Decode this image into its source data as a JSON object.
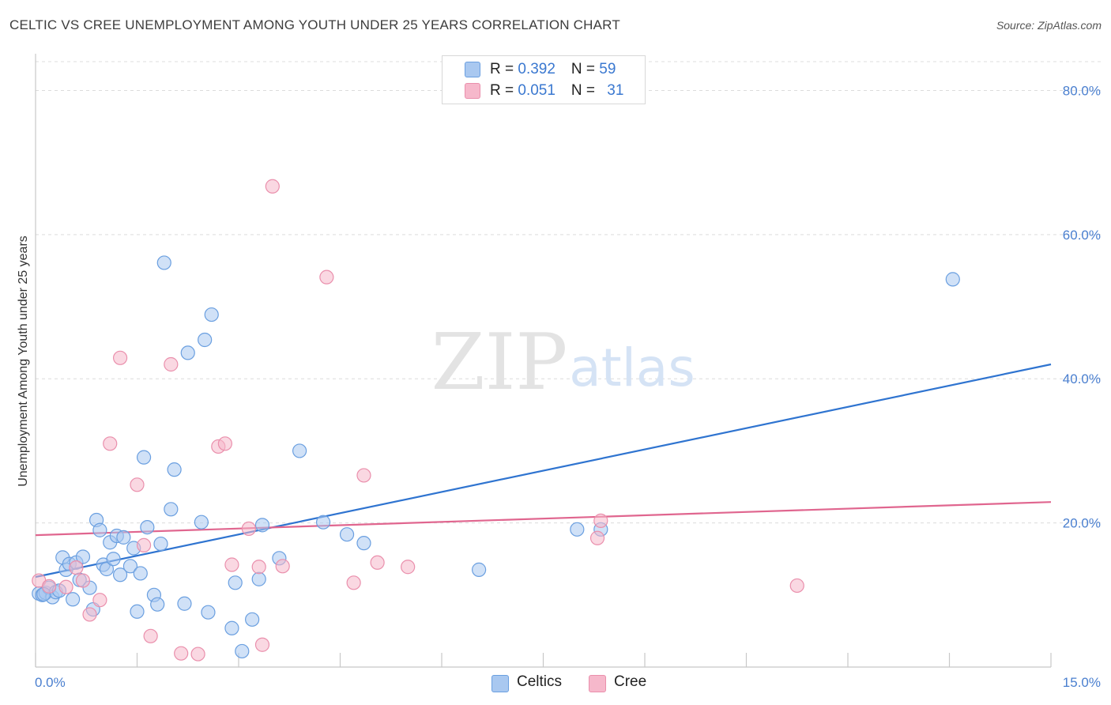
{
  "header": {
    "title": "CELTIC VS CREE UNEMPLOYMENT AMONG YOUTH UNDER 25 YEARS CORRELATION CHART",
    "source": "Source: ZipAtlas.com"
  },
  "watermark": {
    "zip": "ZIP",
    "atlas": "atlas"
  },
  "legend": {
    "rows": [
      {
        "r_label": "R = ",
        "r_value": "0.392",
        "n_label": "N = ",
        "n_value": "59"
      },
      {
        "r_label": "R = ",
        "r_value": "0.051",
        "n_label": "N = ",
        "n_value": "31"
      }
    ]
  },
  "bottom_legend": {
    "celtics": "Celtics",
    "cree": "Cree"
  },
  "colors": {
    "celtics_fill": "#a9c8f0",
    "celtics_stroke": "#6a9fe0",
    "celtics_line": "#2f74d0",
    "cree_fill": "#f6b8cb",
    "cree_stroke": "#ea8fac",
    "cree_line": "#e0668f",
    "tick_text": "#4a7fcf"
  },
  "chart_data": {
    "type": "scatter",
    "title": "CELTIC VS CREE UNEMPLOYMENT AMONG YOUTH UNDER 25 YEARS CORRELATION CHART",
    "xlabel": "",
    "ylabel": "Unemployment Among Youth under 25 years",
    "xlim": [
      0,
      15
    ],
    "ylim": [
      0,
      84
    ],
    "x_tick_labels": [
      "0.0%",
      "15.0%"
    ],
    "y_ticks": [
      20,
      40,
      60,
      80
    ],
    "y_tick_labels": [
      "20.0%",
      "40.0%",
      "60.0%",
      "80.0%"
    ],
    "grid": true,
    "series": [
      {
        "name": "Celtics",
        "r": 0.392,
        "n": 59,
        "trend": {
          "x": [
            0,
            15
          ],
          "y": [
            12.5,
            42.0
          ]
        },
        "points": [
          [
            0.05,
            10.2
          ],
          [
            0.1,
            10.0
          ],
          [
            0.15,
            10.3
          ],
          [
            0.2,
            11.0
          ],
          [
            0.25,
            9.7
          ],
          [
            0.3,
            10.4
          ],
          [
            0.4,
            15.2
          ],
          [
            0.45,
            13.5
          ],
          [
            0.5,
            14.3
          ],
          [
            0.55,
            9.4
          ],
          [
            0.6,
            14.5
          ],
          [
            0.65,
            12.1
          ],
          [
            0.7,
            15.3
          ],
          [
            0.8,
            11.0
          ],
          [
            0.85,
            8.0
          ],
          [
            0.9,
            20.4
          ],
          [
            0.95,
            19.0
          ],
          [
            1.0,
            14.2
          ],
          [
            1.05,
            13.6
          ],
          [
            1.1,
            17.3
          ],
          [
            1.15,
            15.0
          ],
          [
            1.2,
            18.2
          ],
          [
            1.25,
            12.8
          ],
          [
            1.3,
            18.0
          ],
          [
            1.4,
            14.0
          ],
          [
            1.45,
            16.5
          ],
          [
            1.5,
            7.7
          ],
          [
            1.55,
            13.0
          ],
          [
            1.6,
            29.1
          ],
          [
            1.65,
            19.4
          ],
          [
            1.75,
            10.0
          ],
          [
            1.8,
            8.7
          ],
          [
            1.85,
            17.1
          ],
          [
            1.9,
            56.1
          ],
          [
            2.0,
            21.9
          ],
          [
            2.05,
            27.4
          ],
          [
            2.2,
            8.8
          ],
          [
            2.25,
            43.6
          ],
          [
            2.45,
            20.1
          ],
          [
            2.5,
            45.4
          ],
          [
            2.55,
            7.6
          ],
          [
            2.6,
            48.9
          ],
          [
            2.9,
            5.4
          ],
          [
            2.95,
            11.7
          ],
          [
            3.05,
            2.2
          ],
          [
            3.2,
            6.6
          ],
          [
            3.3,
            12.2
          ],
          [
            3.35,
            19.7
          ],
          [
            3.6,
            15.1
          ],
          [
            3.9,
            30.0
          ],
          [
            4.25,
            20.1
          ],
          [
            4.6,
            18.4
          ],
          [
            4.85,
            17.2
          ],
          [
            6.55,
            13.5
          ],
          [
            8.0,
            19.1
          ],
          [
            8.35,
            19.1
          ],
          [
            13.55,
            53.8
          ],
          [
            0.12,
            10.1
          ],
          [
            0.35,
            10.6
          ]
        ]
      },
      {
        "name": "Cree",
        "r": 0.051,
        "n": 31,
        "trend": {
          "x": [
            0,
            15
          ],
          "y": [
            18.3,
            22.9
          ]
        },
        "points": [
          [
            0.05,
            12.0
          ],
          [
            0.2,
            11.2
          ],
          [
            0.45,
            11.1
          ],
          [
            0.6,
            13.8
          ],
          [
            0.7,
            12.0
          ],
          [
            0.8,
            7.3
          ],
          [
            0.95,
            9.3
          ],
          [
            1.1,
            31.0
          ],
          [
            1.25,
            42.9
          ],
          [
            1.5,
            25.3
          ],
          [
            1.6,
            16.9
          ],
          [
            1.7,
            4.3
          ],
          [
            2.0,
            42.0
          ],
          [
            2.15,
            1.9
          ],
          [
            2.4,
            1.8
          ],
          [
            2.7,
            30.6
          ],
          [
            2.8,
            31.0
          ],
          [
            2.9,
            14.2
          ],
          [
            3.15,
            19.2
          ],
          [
            3.3,
            13.9
          ],
          [
            3.35,
            3.1
          ],
          [
            3.5,
            66.7
          ],
          [
            3.65,
            14.0
          ],
          [
            4.3,
            54.1
          ],
          [
            4.7,
            11.7
          ],
          [
            4.85,
            26.6
          ],
          [
            5.05,
            14.5
          ],
          [
            5.5,
            13.9
          ],
          [
            8.3,
            17.9
          ],
          [
            8.35,
            20.3
          ],
          [
            11.25,
            11.3
          ]
        ]
      }
    ]
  }
}
